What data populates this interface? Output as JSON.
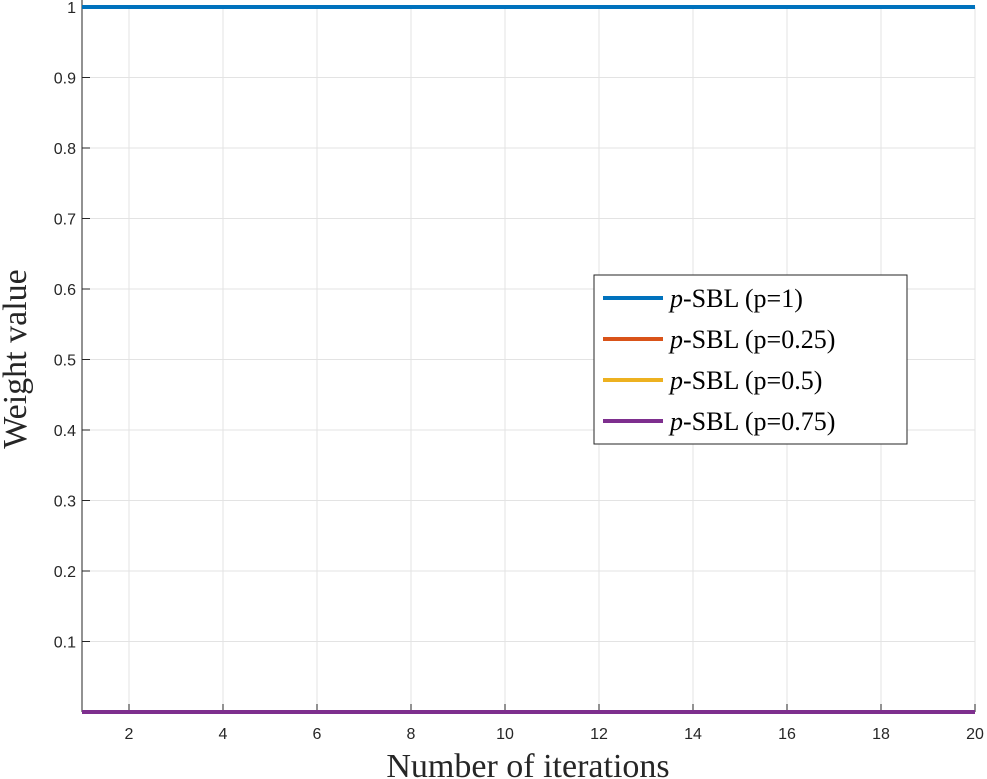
{
  "chart_data": {
    "type": "line",
    "title": "",
    "xlabel": "Number of iterations",
    "ylabel": "Weight value",
    "xlim": [
      1,
      20
    ],
    "ylim": [
      0,
      1
    ],
    "grid": true,
    "x_ticks": [
      2,
      4,
      6,
      8,
      10,
      12,
      14,
      16,
      18,
      20
    ],
    "y_ticks": [
      0.1,
      0.2,
      0.3,
      0.4,
      0.5,
      0.6,
      0.7,
      0.8,
      0.9,
      1
    ],
    "y_tick_labels": [
      "0.1",
      "0.2",
      "0.3",
      "0.4",
      "0.5",
      "0.6",
      "0.7",
      "0.8",
      "0.9",
      "1"
    ],
    "x": [
      1,
      2,
      3,
      4,
      5,
      6,
      7,
      8,
      9,
      10,
      11,
      12,
      13,
      14,
      15,
      16,
      17,
      18,
      19,
      20
    ],
    "series": [
      {
        "name": "p-SBL (p=1)",
        "italic_prefix": "p",
        "label_rest": "-SBL (p=1)",
        "color": "#0072BD",
        "values": [
          1,
          1,
          1,
          1,
          1,
          1,
          1,
          1,
          1,
          1,
          1,
          1,
          1,
          1,
          1,
          1,
          1,
          1,
          1,
          1
        ]
      },
      {
        "name": "p-SBL (p=0.25)",
        "italic_prefix": "p",
        "label_rest": "-SBL (p=0.25)",
        "color": "#D95319",
        "values": [
          0,
          0,
          0,
          0,
          0,
          0,
          0,
          0,
          0,
          0,
          0,
          0,
          0,
          0,
          0,
          0,
          0,
          0,
          0,
          0
        ]
      },
      {
        "name": "p-SBL (p=0.5)",
        "italic_prefix": "p",
        "label_rest": "-SBL (p=0.5)",
        "color": "#EDB120",
        "values": [
          0,
          0,
          0,
          0,
          0,
          0,
          0,
          0,
          0,
          0,
          0,
          0,
          0,
          0,
          0,
          0,
          0,
          0,
          0,
          0
        ]
      },
      {
        "name": "p-SBL (p=0.75)",
        "italic_prefix": "p",
        "label_rest": "-SBL (p=0.75)",
        "color": "#7E2F8E",
        "values": [
          0,
          0,
          0,
          0,
          0,
          0,
          0,
          0,
          0,
          0,
          0,
          0,
          0,
          0,
          0,
          0,
          0,
          0,
          0,
          0
        ]
      }
    ],
    "legend_position": "center-right"
  }
}
